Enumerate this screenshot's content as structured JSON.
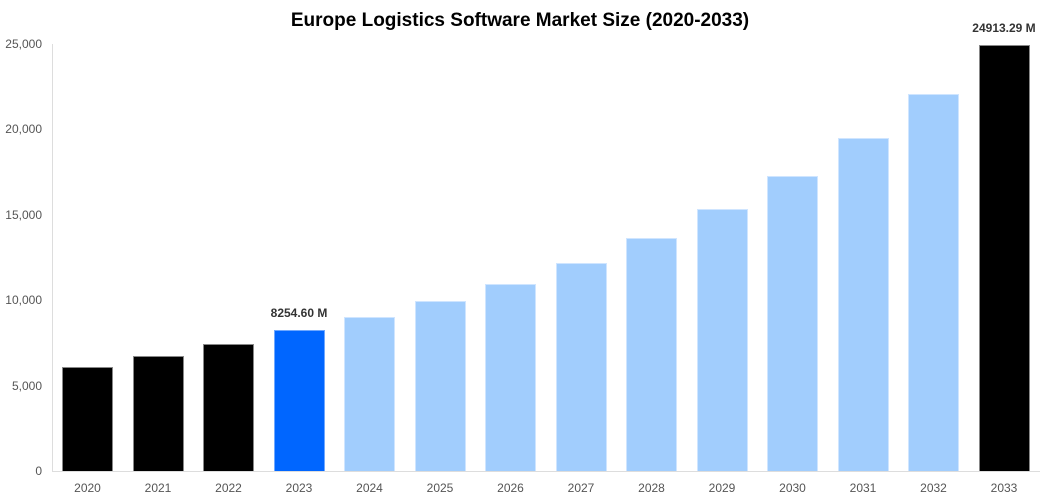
{
  "chart_data": {
    "type": "bar",
    "title": "Europe Logistics Software Market Size (2020-2033)",
    "xlabel": "",
    "ylabel": "",
    "ylim": [
      0,
      25000
    ],
    "yticks": [
      "0",
      "5,000",
      "10,000",
      "15,000",
      "20,000",
      "25,000"
    ],
    "grid": false,
    "legend": null,
    "categories": [
      "2020",
      "2021",
      "2022",
      "2023",
      "2024",
      "2025",
      "2026",
      "2027",
      "2028",
      "2029",
      "2030",
      "2031",
      "2032",
      "2033"
    ],
    "values": [
      6100,
      6750,
      7450,
      8254.6,
      9040,
      9980,
      10970,
      12200,
      13670,
      15320,
      17250,
      19480,
      22070,
      24913.29
    ],
    "bar_colors": [
      "#000000",
      "#000000",
      "#000000",
      "#0066ff",
      "#a1cdfd",
      "#a1cdfd",
      "#a1cdfd",
      "#a1cdfd",
      "#a1cdfd",
      "#a1cdfd",
      "#a1cdfd",
      "#a1cdfd",
      "#a1cdfd",
      "#000000"
    ],
    "annotations": [
      {
        "category": "2023",
        "text": "8254.60 M"
      },
      {
        "category": "2033",
        "text": "24913.29 M"
      }
    ]
  }
}
